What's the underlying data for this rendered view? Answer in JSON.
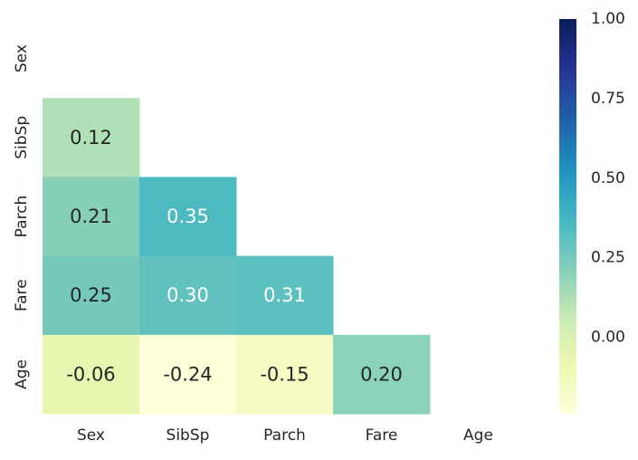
{
  "chart_data": {
    "type": "heatmap",
    "title": "",
    "xlabel": "",
    "ylabel": "",
    "mask": "upper-triangle-including-diagonal",
    "x_labels": [
      "Sex",
      "SibSp",
      "Parch",
      "Fare",
      "Age"
    ],
    "y_labels": [
      "Sex",
      "SibSp",
      "Parch",
      "Fare",
      "Age"
    ],
    "cells": [
      {
        "row": "SibSp",
        "col": "Sex",
        "value": 0.12,
        "label": "0.12"
      },
      {
        "row": "Parch",
        "col": "Sex",
        "value": 0.21,
        "label": "0.21"
      },
      {
        "row": "Parch",
        "col": "SibSp",
        "value": 0.35,
        "label": "0.35"
      },
      {
        "row": "Fare",
        "col": "Sex",
        "value": 0.25,
        "label": "0.25"
      },
      {
        "row": "Fare",
        "col": "SibSp",
        "value": 0.3,
        "label": "0.30"
      },
      {
        "row": "Fare",
        "col": "Parch",
        "value": 0.31,
        "label": "0.31"
      },
      {
        "row": "Age",
        "col": "Sex",
        "value": -0.06,
        "label": "-0.06"
      },
      {
        "row": "Age",
        "col": "SibSp",
        "value": -0.24,
        "label": "-0.24"
      },
      {
        "row": "Age",
        "col": "Parch",
        "value": -0.15,
        "label": "-0.15"
      },
      {
        "row": "Age",
        "col": "Fare",
        "value": 0.2,
        "label": "0.20"
      }
    ],
    "colorbar": {
      "colormap": "YlGnBu",
      "range": [
        -0.24,
        1.0
      ],
      "ticks": [
        0.0,
        0.25,
        0.5,
        0.75,
        1.0
      ],
      "tick_labels": [
        "0.00",
        "0.25",
        "0.50",
        "0.75",
        "1.00"
      ]
    },
    "colormap_stops": [
      "#ffffd9",
      "#edf8b1",
      "#c7e9b4",
      "#7fcdbb",
      "#41b6c4",
      "#1d91c0",
      "#225ea8",
      "#253494",
      "#081d58"
    ]
  }
}
